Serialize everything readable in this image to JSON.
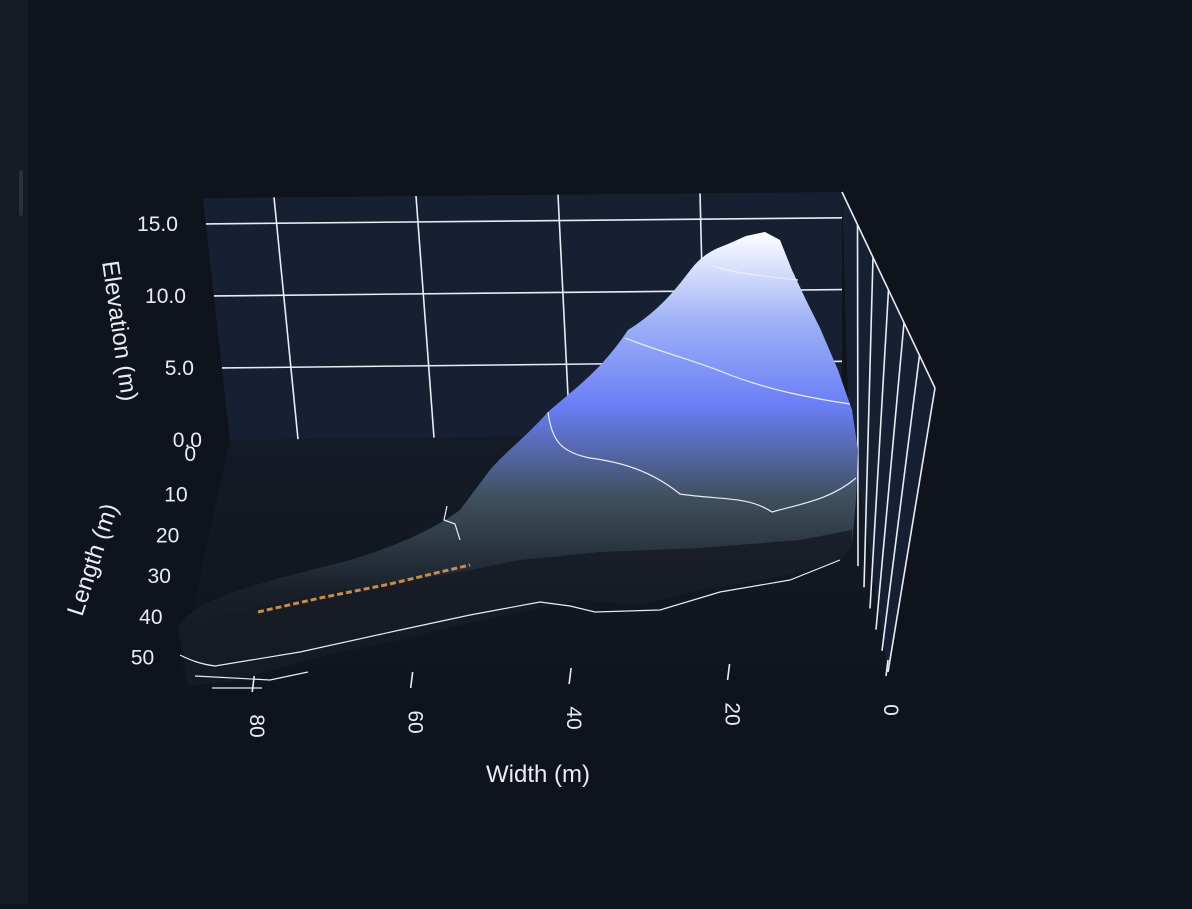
{
  "chart_data": {
    "type": "surface",
    "title": "",
    "axes": {
      "x": {
        "label": "Width (m)",
        "ticks": [
          "80",
          "60",
          "40",
          "20",
          "0"
        ],
        "range": [
          0,
          90
        ]
      },
      "y": {
        "label": "Length (m)",
        "ticks": [
          "0",
          "10",
          "20",
          "30",
          "40",
          "50"
        ],
        "range": [
          0,
          55
        ]
      },
      "z": {
        "label": "Elevation (m)",
        "ticks": [
          "0.0",
          "5.0",
          "10.0",
          "15.0"
        ],
        "range": [
          0,
          16.8
        ]
      }
    },
    "contour_levels": [
      2.5,
      6.5,
      14.0
    ],
    "peak": {
      "width": 24,
      "length": 0,
      "elevation": 16.3
    },
    "colorscale": [
      "#0f131b",
      "#3f505c",
      "#6a7ef6",
      "#ffffff"
    ],
    "highlight_color": "#c98a4f",
    "grid": true
  }
}
